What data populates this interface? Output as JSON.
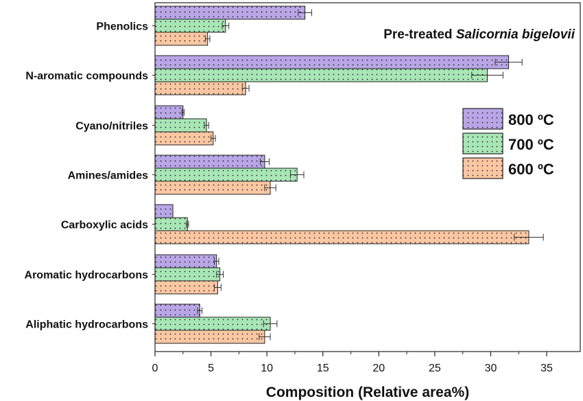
{
  "chart_data": {
    "type": "bar",
    "orientation": "horizontal",
    "title_plain": "Pre-treated ",
    "title_italic": "Salicornia bigelovii",
    "xlabel": "Composition (Relative area%)",
    "ylabel": "",
    "xlim": [
      0,
      38
    ],
    "xticks": [
      "0",
      "5",
      "10",
      "15",
      "20",
      "25",
      "30",
      "35"
    ],
    "legend_position": "right",
    "categories": [
      "Phenolics",
      "N-aromatic compounds",
      "Cyano/nitriles",
      "Amines/amides",
      "Carboxylic acids",
      "Aromatic hydrocarbons",
      "Aliphatic hydrocarbons"
    ],
    "series": [
      {
        "name": "800 ºC",
        "color": "#b8a6e6",
        "values": [
          13.4,
          31.6,
          2.5,
          9.8,
          1.6,
          5.5,
          4.0
        ],
        "errors": [
          0.6,
          1.2,
          0.1,
          0.4,
          0.0,
          0.2,
          0.2
        ]
      },
      {
        "name": "700 ºC",
        "color": "#a8e6b6",
        "values": [
          6.3,
          29.7,
          4.6,
          12.7,
          2.9,
          5.8,
          10.3
        ],
        "errors": [
          0.3,
          1.4,
          0.2,
          0.6,
          0.1,
          0.3,
          0.6
        ]
      },
      {
        "name": "600 ºC",
        "color": "#fbc7a3",
        "values": [
          4.7,
          8.1,
          5.2,
          10.3,
          33.4,
          5.6,
          9.8
        ],
        "errors": [
          0.2,
          0.3,
          0.2,
          0.5,
          1.3,
          0.3,
          0.5
        ]
      }
    ]
  }
}
